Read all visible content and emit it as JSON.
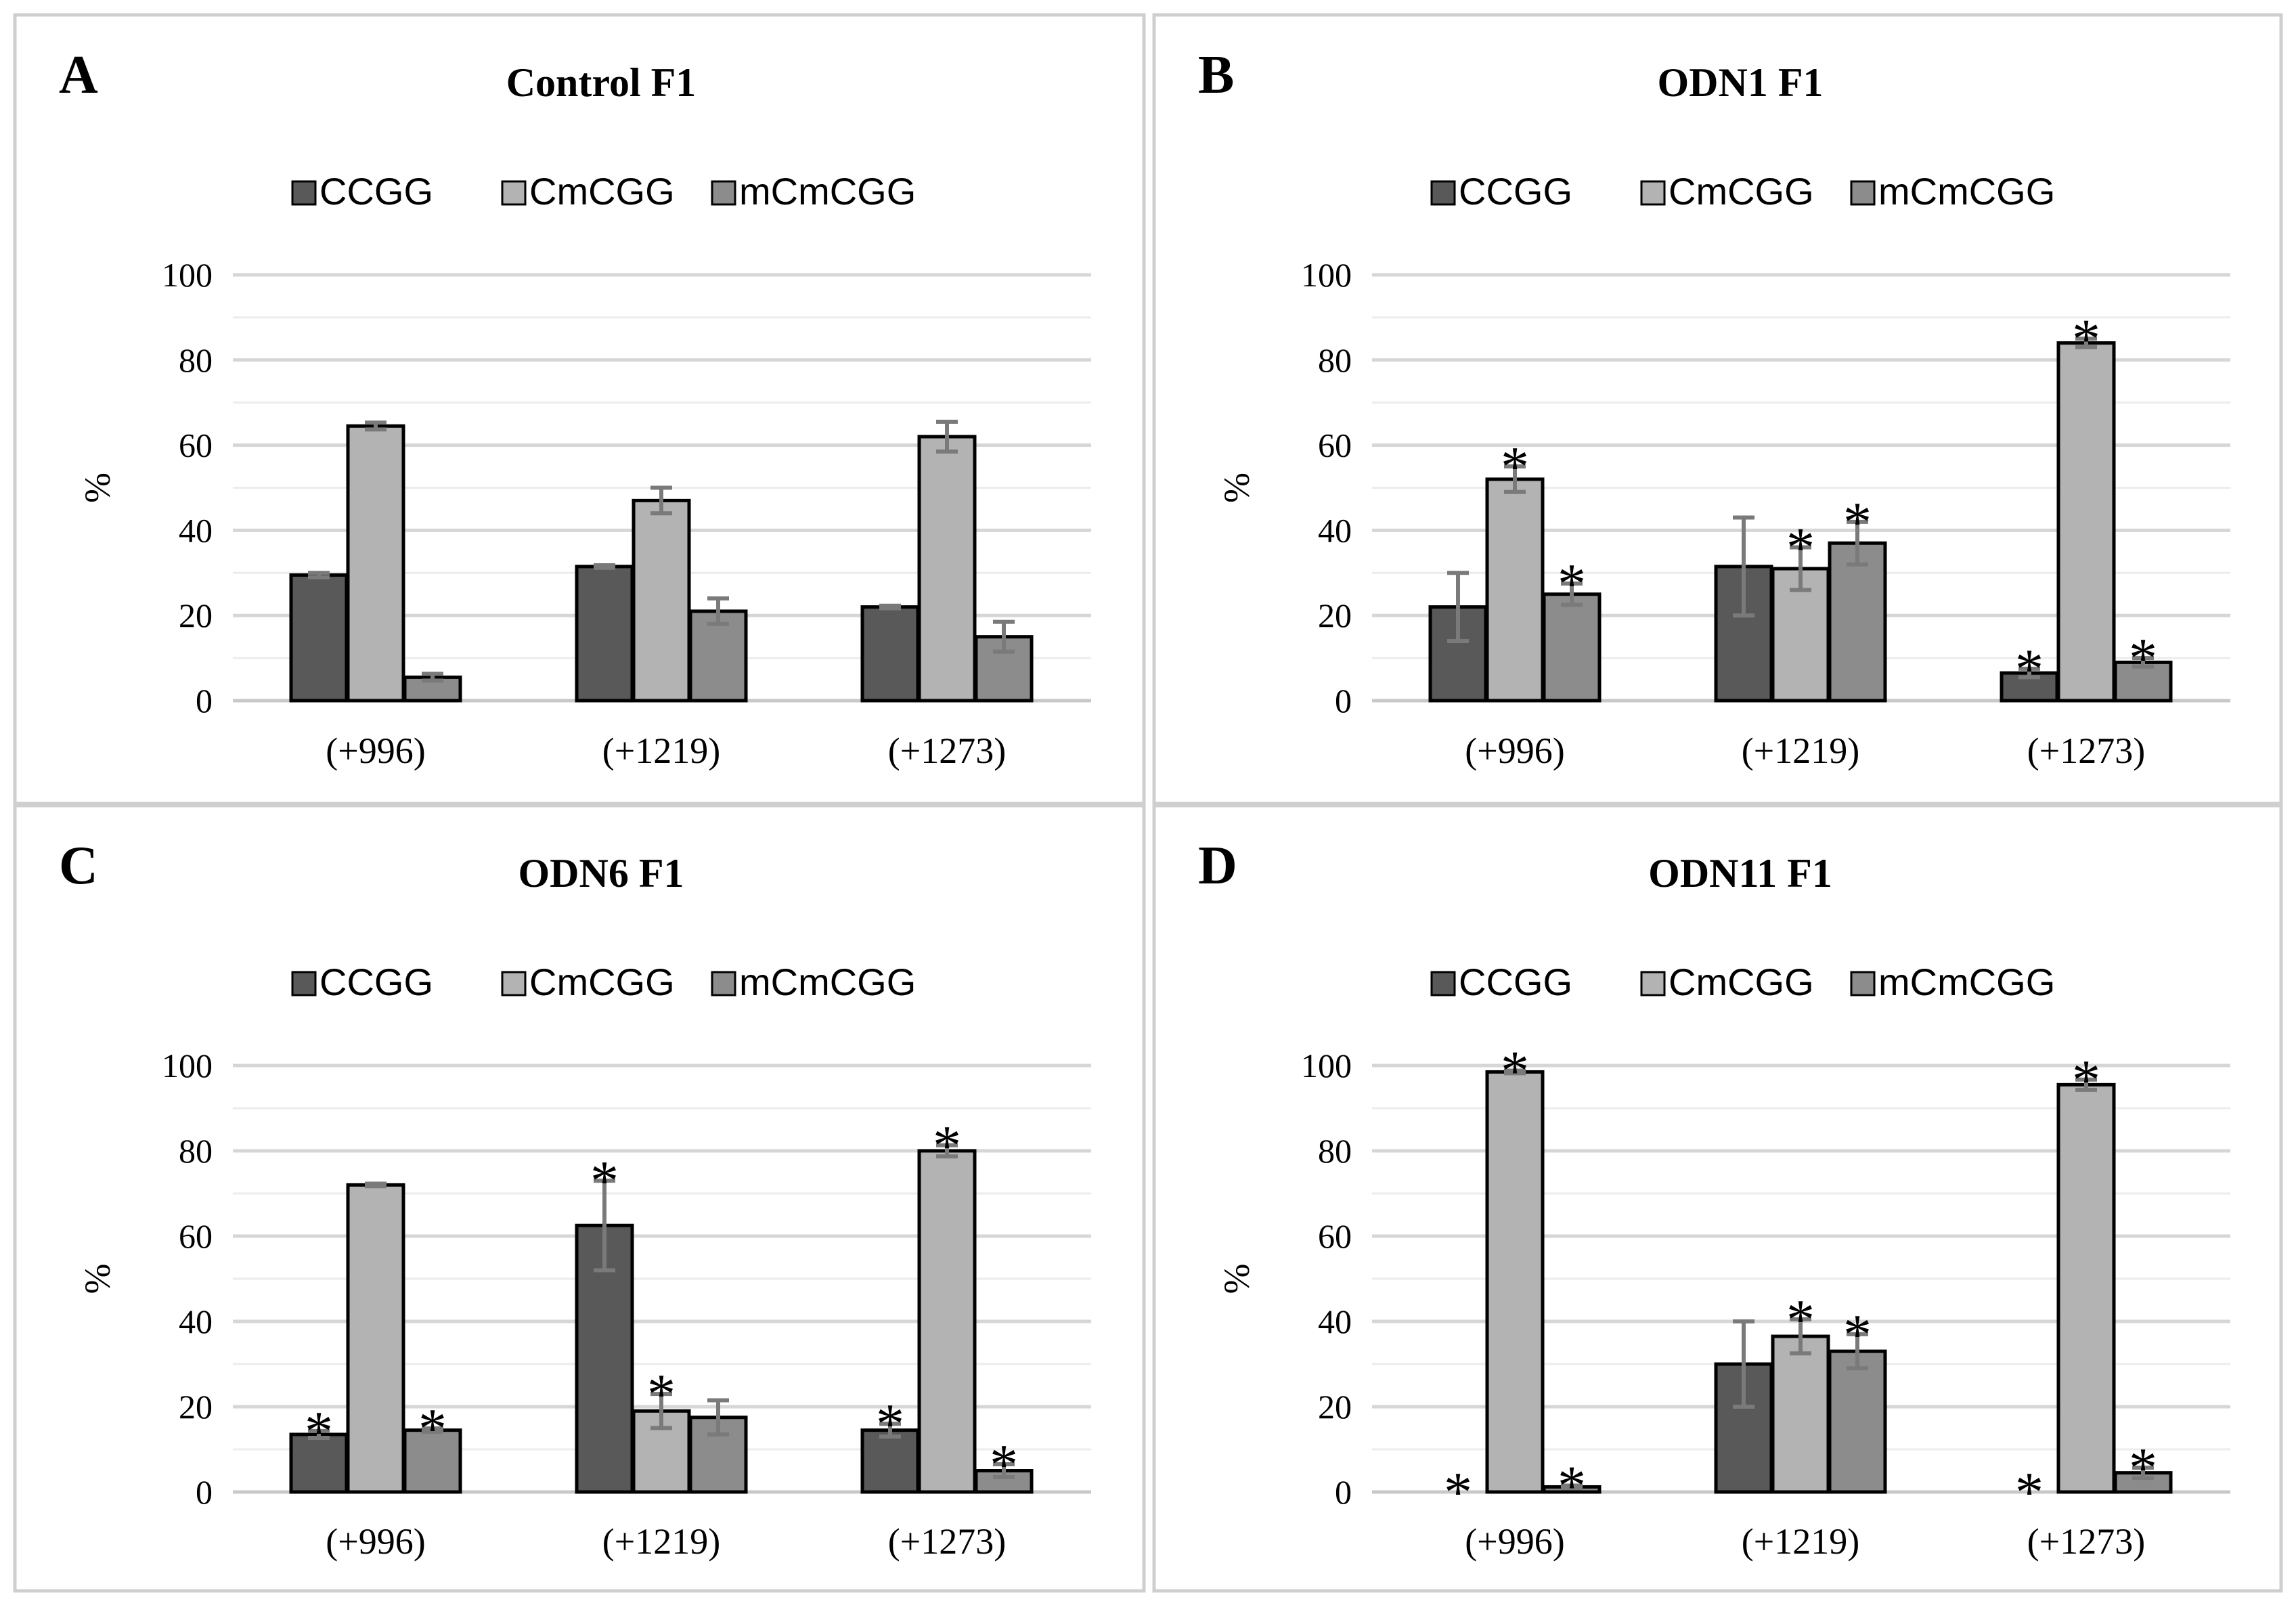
{
  "colors": {
    "CCGG": "#595959",
    "CmCGG": "#b3b3b3",
    "mCmCGG": "#8c8c8c",
    "frame": "#cfcfcf"
  },
  "legend": [
    "CCGG",
    "CmCGG",
    "mCmCGG"
  ],
  "chart_data": [
    {
      "type": "bar",
      "letter": "A",
      "title": "Control F1",
      "ylabel": "%",
      "categories": [
        "(+996)",
        "(+1219)",
        "(+1273)"
      ],
      "ylim": [
        0,
        100
      ],
      "yticks": [
        "0",
        "20",
        "40",
        "60",
        "80",
        "100"
      ],
      "series": [
        {
          "name": "CCGG",
          "values": [
            29.5,
            31.5,
            22
          ],
          "errors": [
            0.5,
            0.3,
            0.3
          ],
          "sig": [
            false,
            false,
            false
          ]
        },
        {
          "name": "CmCGG",
          "values": [
            64.5,
            47,
            62
          ],
          "errors": [
            0.8,
            3,
            3.5
          ],
          "sig": [
            false,
            false,
            false
          ]
        },
        {
          "name": "mCmCGG",
          "values": [
            5.5,
            21,
            15
          ],
          "errors": [
            0.8,
            3,
            3.5
          ],
          "sig": [
            false,
            false,
            false
          ]
        }
      ]
    },
    {
      "type": "bar",
      "letter": "B",
      "title": "ODN1 F1",
      "ylabel": "%",
      "categories": [
        "(+996)",
        "(+1219)",
        "(+1273)"
      ],
      "ylim": [
        0,
        100
      ],
      "yticks": [
        "0",
        "20",
        "40",
        "60",
        "80",
        "100"
      ],
      "series": [
        {
          "name": "CCGG",
          "values": [
            22,
            31.5,
            6.5
          ],
          "errors": [
            8,
            11.5,
            1
          ],
          "sig": [
            false,
            false,
            true
          ]
        },
        {
          "name": "CmCGG",
          "values": [
            52,
            31,
            84
          ],
          "errors": [
            3,
            5,
            1
          ],
          "sig": [
            true,
            true,
            true
          ]
        },
        {
          "name": "mCmCGG",
          "values": [
            25,
            37,
            9
          ],
          "errors": [
            2.5,
            5,
            1
          ],
          "sig": [
            true,
            true,
            true
          ]
        }
      ]
    },
    {
      "type": "bar",
      "letter": "C",
      "title": "ODN6 F1",
      "ylabel": "%",
      "categories": [
        "(+996)",
        "(+1219)",
        "(+1273)"
      ],
      "ylim": [
        0,
        100
      ],
      "yticks": [
        "0",
        "20",
        "40",
        "60",
        "80",
        "100"
      ],
      "series": [
        {
          "name": "CCGG",
          "values": [
            13.5,
            62.5,
            14.5
          ],
          "errors": [
            0.8,
            10.5,
            1.5
          ],
          "sig": [
            true,
            true,
            true
          ]
        },
        {
          "name": "CmCGG",
          "values": [
            72,
            19,
            80
          ],
          "errors": [
            0.3,
            4,
            1.3
          ],
          "sig": [
            false,
            true,
            true
          ]
        },
        {
          "name": "mCmCGG",
          "values": [
            14.5,
            17.5,
            5
          ],
          "errors": [
            0.4,
            4,
            1.5
          ],
          "sig": [
            true,
            false,
            true
          ]
        }
      ]
    },
    {
      "type": "bar",
      "letter": "D",
      "title": "ODN11 F1",
      "ylabel": "%",
      "categories": [
        "(+996)",
        "(+1219)",
        "(+1273)"
      ],
      "ylim": [
        0,
        100
      ],
      "yticks": [
        "0",
        "20",
        "40",
        "60",
        "80",
        "100"
      ],
      "series": [
        {
          "name": "CCGG",
          "values": [
            0,
            30,
            0
          ],
          "errors": [
            0,
            10,
            0
          ],
          "sig": [
            true,
            false,
            true
          ]
        },
        {
          "name": "CmCGG",
          "values": [
            98.5,
            36.5,
            95.5
          ],
          "errors": [
            0.3,
            4,
            1.2
          ],
          "sig": [
            true,
            true,
            true
          ]
        },
        {
          "name": "mCmCGG",
          "values": [
            1.2,
            33,
            4.5
          ],
          "errors": [
            0.3,
            4,
            1.2
          ],
          "sig": [
            true,
            true,
            true
          ]
        }
      ]
    }
  ]
}
